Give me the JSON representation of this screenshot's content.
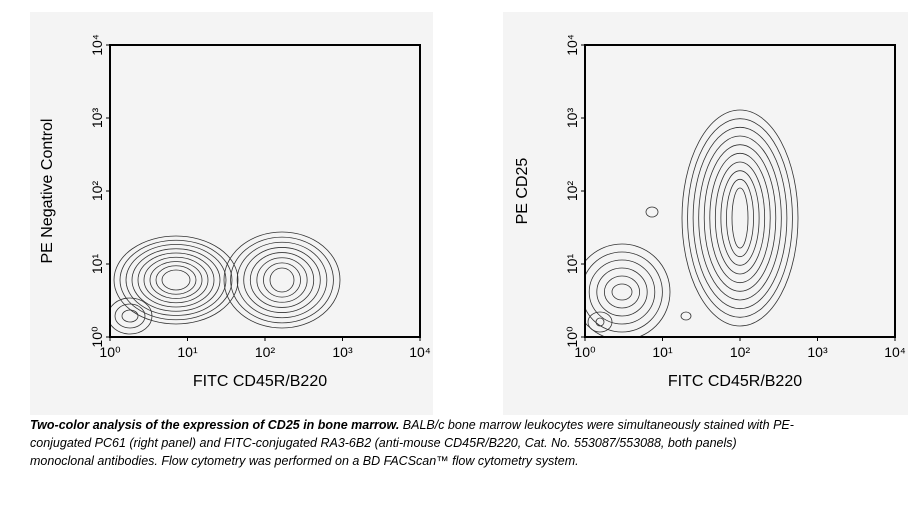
{
  "chart_data": [
    {
      "type": "contour",
      "xlabel": "FITC CD45R/B220",
      "ylabel": "PE Negative Control",
      "log_x": true,
      "log_y": true,
      "xlim": [
        1,
        10000
      ],
      "ylim": [
        1,
        10000
      ],
      "xticks": [
        {
          "value": 1,
          "label": "10⁰"
        },
        {
          "value": 10,
          "label": "10¹"
        },
        {
          "value": 100,
          "label": "10²"
        },
        {
          "value": 1000,
          "label": "10³"
        },
        {
          "value": 10000,
          "label": "10⁴"
        }
      ],
      "yticks": [
        {
          "value": 1,
          "label": "10⁰"
        },
        {
          "value": 10,
          "label": "10¹"
        },
        {
          "value": 100,
          "label": "10²"
        },
        {
          "value": 1000,
          "label": "10³"
        },
        {
          "value": 10000,
          "label": "10⁴"
        }
      ]
    },
    {
      "type": "contour",
      "xlabel": "FITC CD45R/B220",
      "ylabel": "PE CD25",
      "log_x": true,
      "log_y": true,
      "xlim": [
        1,
        10000
      ],
      "ylim": [
        1,
        10000
      ],
      "xticks": [
        {
          "value": 1,
          "label": "10⁰"
        },
        {
          "value": 10,
          "label": "10¹"
        },
        {
          "value": 100,
          "label": "10²"
        },
        {
          "value": 1000,
          "label": "10³"
        },
        {
          "value": 10000,
          "label": "10⁴"
        }
      ],
      "yticks": [
        {
          "value": 1,
          "label": "10⁰"
        },
        {
          "value": 10,
          "label": "10¹"
        },
        {
          "value": 100,
          "label": "10²"
        },
        {
          "value": 1000,
          "label": "10³"
        },
        {
          "value": 10000,
          "label": "10⁴"
        }
      ]
    }
  ],
  "caption": {
    "bold": "Two-color analysis of the expression of CD25 in bone marrow.",
    "text": " BALB/c bone marrow leukocytes were simultaneously stained with PE-conjugated PC61 (right panel) and FITC-conjugated RA3-6B2 (anti-mouse CD45R/B220, Cat. No. 553087/553088, both panels) monoclonal antibodies. Flow cytometry was performed on a BD FACScan™ flow cytometry system."
  }
}
